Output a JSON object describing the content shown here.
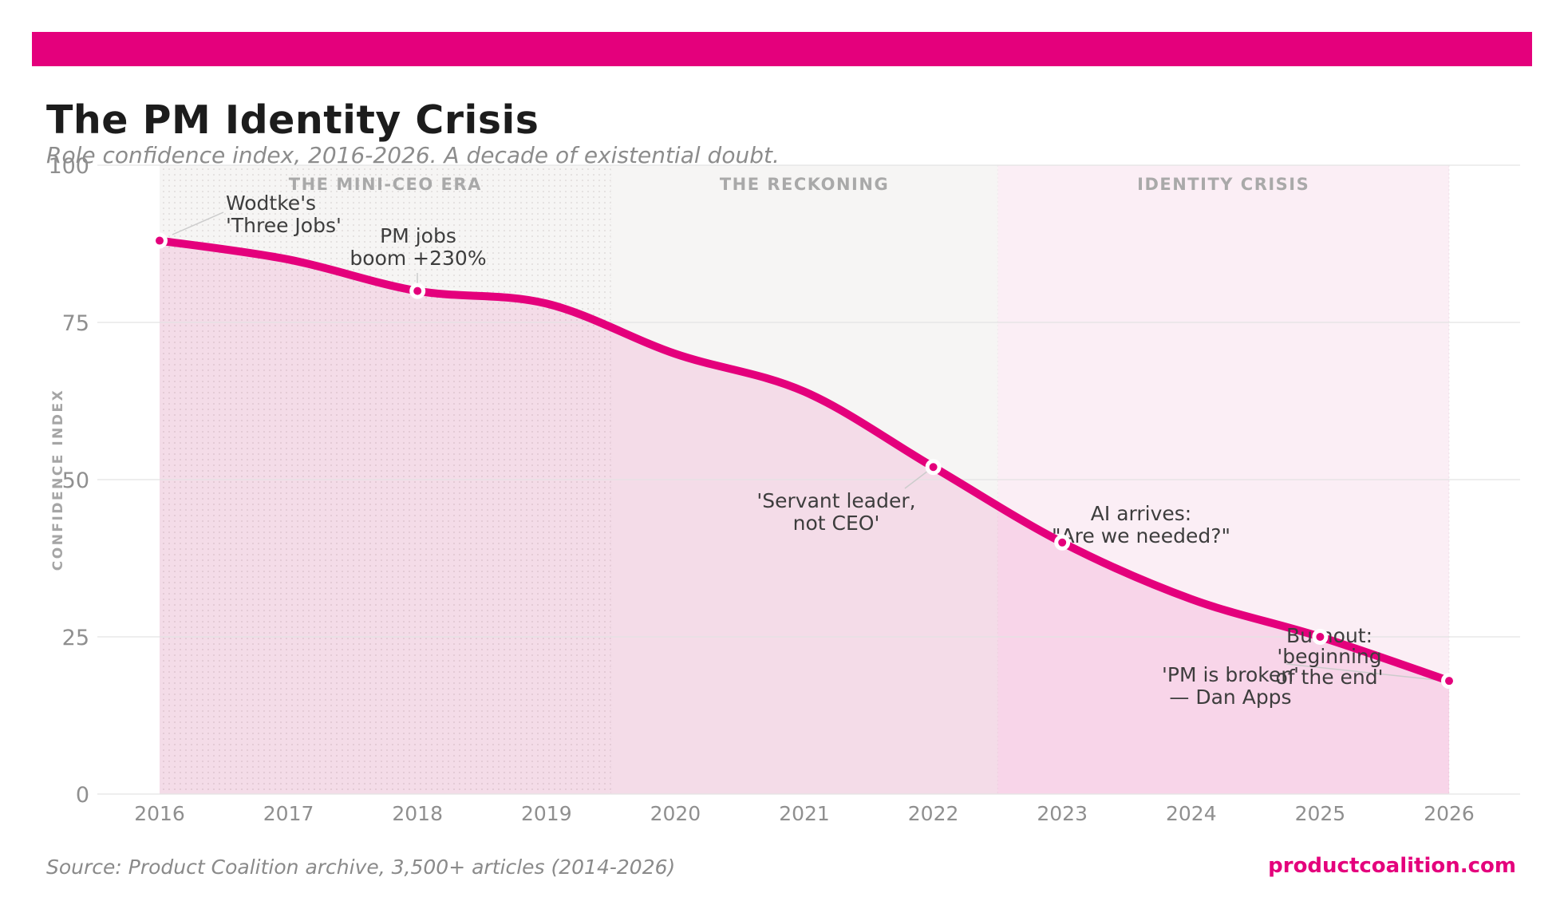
{
  "header": {
    "title": "The PM Identity Crisis",
    "subtitle": "Role confidence index, 2016-2026. A decade of existential doubt."
  },
  "footer": {
    "source": "Source: Product Coalition archive, 3,500+ articles (2014-2026)",
    "site": "productcoalition.com"
  },
  "colors": {
    "accent": "#e4007c",
    "area_fill": "rgba(228,0,124,0.10)",
    "band_gray": "#f6f5f4",
    "band_pink": "#fbeef5",
    "gridline": "#e3e3e3",
    "tick_label": "#8f8f8f",
    "era_label": "#a9a9a9",
    "annotation": "#3d3d3d",
    "leader": "#cccccc",
    "axis_title": "#a5a5a5"
  },
  "chart_data": {
    "type": "line",
    "title": "The PM Identity Crisis",
    "subtitle": "Role confidence index, 2016-2026. A decade of existential doubt.",
    "x": [
      2016,
      2017,
      2018,
      2019,
      2020,
      2021,
      2022,
      2023,
      2024,
      2025,
      2026
    ],
    "series": [
      {
        "name": "Role confidence index",
        "values": [
          88,
          85,
          80,
          78,
          70,
          64,
          52,
          40,
          31,
          25,
          18
        ]
      }
    ],
    "xlabel": "",
    "ylabel": "CONFIDENCE INDEX",
    "ylim": [
      0,
      100
    ],
    "yticks": [
      0,
      25,
      50,
      75,
      100
    ],
    "grid": true,
    "legend": false,
    "eras": [
      {
        "label": "THE MINI-CEO ERA",
        "start": 2016,
        "end": 2019.5,
        "style": "gray-dotted"
      },
      {
        "label": "THE RECKONING",
        "start": 2019.5,
        "end": 2022.5,
        "style": "gray"
      },
      {
        "label": "IDENTITY CRISIS",
        "start": 2022.5,
        "end": 2026,
        "style": "pink"
      }
    ],
    "marked_points": [
      {
        "year": 2016,
        "value": 88
      },
      {
        "year": 2018,
        "value": 80
      },
      {
        "year": 2022,
        "value": 52
      },
      {
        "year": 2023,
        "value": 40
      },
      {
        "year": 2025,
        "value": 25
      },
      {
        "year": 2026,
        "value": 18
      }
    ],
    "annotations": [
      {
        "year": 2016,
        "lines": [
          "Wodtke's",
          "'Three Jobs'"
        ]
      },
      {
        "year": 2018,
        "lines": [
          "PM jobs",
          "boom +230%"
        ]
      },
      {
        "year": 2022,
        "lines": [
          "'Servant leader,",
          "not CEO'"
        ]
      },
      {
        "year": 2023,
        "lines": [
          "AI arrives:",
          "\"Are we needed?\""
        ]
      },
      {
        "year": 2025,
        "lines": [
          "Burnout:",
          "'beginning",
          "of the end'"
        ]
      },
      {
        "year": 2026,
        "lines": [
          "'PM is broken'",
          "— Dan Apps"
        ]
      }
    ]
  }
}
